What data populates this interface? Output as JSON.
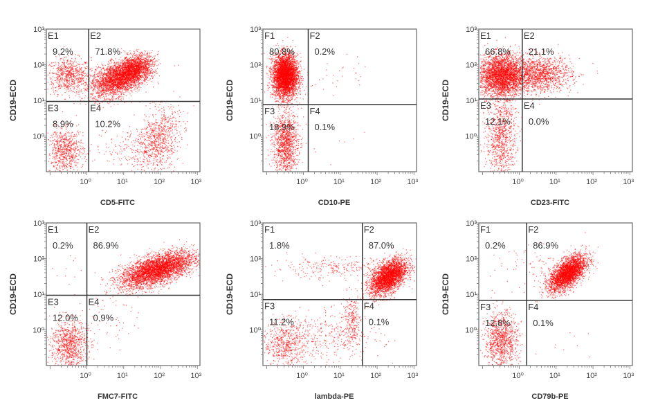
{
  "chart_data": [
    {
      "type": "scatter",
      "scale": "log",
      "xlabel": "CD5-FITC",
      "ylabel": "CD19-ECD",
      "x_ticks": [
        "10⁰",
        "10¹",
        "10²",
        "10³"
      ],
      "y_ticks": [
        "10⁰",
        "10¹",
        "10²",
        "10³"
      ],
      "xlim_log10": [
        -1.1,
        3.07
      ],
      "ylim_log10": [
        -1,
        3
      ],
      "gate_log10": {
        "x": 0.05,
        "y": 0.97
      },
      "quadrants": [
        {
          "name": "E1",
          "percent": "9.2%"
        },
        {
          "name": "E2",
          "percent": "71.8%"
        },
        {
          "name": "E3",
          "percent": "8.9%"
        },
        {
          "name": "E4",
          "percent": "10.2%"
        }
      ],
      "populations_log10": [
        [
          -0.5,
          1.7,
          0.3,
          0.25,
          0,
          700
        ],
        [
          0.8,
          1.6,
          0.35,
          0.25,
          0.4,
          2500
        ],
        [
          1.3,
          1.9,
          0.25,
          0.2,
          0.3,
          1500
        ],
        [
          -0.6,
          -0.4,
          0.25,
          0.3,
          0,
          700
        ],
        [
          1.9,
          -0.1,
          0.3,
          0.45,
          0.3,
          800
        ],
        [
          1.2,
          -0.3,
          0.5,
          0.3,
          0,
          150
        ]
      ]
    },
    {
      "type": "scatter",
      "scale": "log",
      "xlabel": "CD10-PE",
      "ylabel": "CD19-ECD",
      "x_ticks": [
        "10⁰",
        "10¹",
        "10²",
        "10³"
      ],
      "y_ticks": [
        "10⁰",
        "10¹",
        "10²",
        "10³"
      ],
      "xlim_log10": [
        -1.1,
        3.07
      ],
      "ylim_log10": [
        -1,
        3
      ],
      "gate_log10": {
        "x": 0.13,
        "y": 0.88
      },
      "quadrants": [
        {
          "name": "F1",
          "percent": "80.8%"
        },
        {
          "name": "F2",
          "percent": "0.2%"
        },
        {
          "name": "F3",
          "percent": "18.9%"
        },
        {
          "name": "F4",
          "percent": "0.1%"
        }
      ],
      "populations_log10": [
        [
          -0.5,
          1.7,
          0.17,
          0.3,
          0,
          4000
        ],
        [
          -0.5,
          -0.2,
          0.17,
          0.45,
          0,
          1200
        ],
        [
          0.8,
          1.8,
          0.5,
          0.3,
          0,
          30
        ],
        [
          0.8,
          -0.2,
          0.6,
          0.5,
          0,
          10
        ]
      ]
    },
    {
      "type": "scatter",
      "scale": "log",
      "xlabel": "CD23-FITC",
      "ylabel": "CD19-ECD",
      "x_ticks": [
        "10⁰",
        "10¹",
        "10²",
        "10³"
      ],
      "y_ticks": [
        "10⁰",
        "10¹",
        "10²",
        "10³"
      ],
      "xlim_log10": [
        -1.1,
        3.07
      ],
      "ylim_log10": [
        -1,
        3
      ],
      "gate_log10": {
        "x": 0.08,
        "y": 1.04
      },
      "quadrants": [
        {
          "name": "E1",
          "percent": "66.8%"
        },
        {
          "name": "E2",
          "percent": "21.1%"
        },
        {
          "name": "E3",
          "percent": "12.1%"
        },
        {
          "name": "E4",
          "percent": "0.0%"
        }
      ],
      "populations_log10": [
        [
          -0.5,
          1.7,
          0.3,
          0.3,
          0,
          3000
        ],
        [
          0.5,
          1.75,
          0.45,
          0.25,
          0,
          1500
        ],
        [
          -0.5,
          0.0,
          0.2,
          0.6,
          0,
          900
        ]
      ]
    },
    {
      "type": "scatter",
      "scale": "log",
      "xlabel": "FMC7-FITC",
      "ylabel": "CD19-ECD",
      "x_ticks": [
        "10⁰",
        "10¹",
        "10²",
        "10³"
      ],
      "y_ticks": [
        "10⁰",
        "10¹",
        "10²",
        "10³"
      ],
      "xlim_log10": [
        -1.1,
        3.07
      ],
      "ylim_log10": [
        -1,
        3
      ],
      "gate_log10": {
        "x": 0.0,
        "y": 0.97
      },
      "quadrants": [
        {
          "name": "E1",
          "percent": "0.2%"
        },
        {
          "name": "E2",
          "percent": "86.9%"
        },
        {
          "name": "E3",
          "percent": "12.0%"
        },
        {
          "name": "E4",
          "percent": "0.9%"
        }
      ],
      "populations_log10": [
        [
          1.9,
          1.7,
          0.5,
          0.25,
          0.6,
          4000
        ],
        [
          -0.5,
          -0.4,
          0.25,
          0.35,
          0,
          900
        ],
        [
          0.5,
          0.3,
          0.4,
          0.4,
          0,
          60
        ],
        [
          -0.4,
          1.7,
          0.3,
          0.4,
          0,
          12
        ]
      ]
    },
    {
      "type": "scatter",
      "scale": "log",
      "xlabel": "lambda-PE",
      "ylabel": "CD19-ECD",
      "x_ticks": [
        "10⁰",
        "10¹",
        "10²",
        "10³"
      ],
      "y_ticks": [
        "10⁰",
        "10¹",
        "10²",
        "10³"
      ],
      "xlim_log10": [
        -1.1,
        3.07
      ],
      "ylim_log10": [
        -1,
        3
      ],
      "gate_log10": {
        "x": 1.6,
        "y": 0.85
      },
      "quadrants": [
        {
          "name": "F1",
          "percent": "1.8%"
        },
        {
          "name": "F2",
          "percent": "87.0%"
        },
        {
          "name": "F3",
          "percent": "11.2%"
        },
        {
          "name": "F4",
          "percent": "0.1%"
        }
      ],
      "populations_log10": [
        [
          2.3,
          1.5,
          0.25,
          0.25,
          0.5,
          3000
        ],
        [
          0.8,
          1.75,
          0.85,
          0.15,
          0,
          250
        ],
        [
          -0.5,
          -0.4,
          0.3,
          0.3,
          0,
          500
        ],
        [
          0.5,
          -0.2,
          0.8,
          0.35,
          0,
          400
        ],
        [
          1.3,
          0.3,
          0.12,
          0.35,
          0,
          250
        ]
      ]
    },
    {
      "type": "scatter",
      "scale": "log",
      "xlabel": "CD79b-PE",
      "ylabel": "CD19-ECD",
      "x_ticks": [
        "10⁰",
        "10¹",
        "10²",
        "10³"
      ],
      "y_ticks": [
        "10⁰",
        "10¹",
        "10²",
        "10³"
      ],
      "xlim_log10": [
        -1.1,
        3.07
      ],
      "ylim_log10": [
        -1,
        3
      ],
      "gate_log10": {
        "x": 0.2,
        "y": 0.83
      },
      "quadrants": [
        {
          "name": "F1",
          "percent": "0.2%"
        },
        {
          "name": "F2",
          "percent": "86.9%"
        },
        {
          "name": "F3",
          "percent": "12.8%"
        },
        {
          "name": "F4",
          "percent": "0.1%"
        }
      ],
      "populations_log10": [
        [
          1.3,
          1.6,
          0.25,
          0.25,
          0.6,
          3000
        ],
        [
          -0.5,
          -0.3,
          0.22,
          0.4,
          0,
          1000
        ],
        [
          0.6,
          1.8,
          0.5,
          0.3,
          0,
          60
        ],
        [
          -0.4,
          1.7,
          0.4,
          0.4,
          0,
          15
        ],
        [
          1.2,
          -0.3,
          0.6,
          0.3,
          0,
          10
        ]
      ]
    }
  ],
  "colors": {
    "event": "#ff0000",
    "frame": "#666666",
    "gate": "#333333"
  }
}
